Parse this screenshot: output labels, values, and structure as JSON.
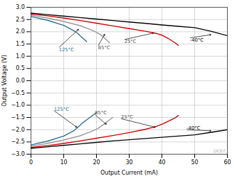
{
  "chart_data": {
    "type": "line",
    "xlabel": "Output Current (mA)",
    "ylabel": "Output Voltage (V)",
    "xlim": [
      0,
      60
    ],
    "ylim": [
      -3,
      3
    ],
    "xticks": [
      0,
      10,
      20,
      30,
      40,
      50,
      60
    ],
    "yticks": [
      {
        "value": -3,
        "label": "−3.0"
      },
      -2.5,
      {
        "value": -2,
        "label": "−2.0"
      },
      -1.5,
      {
        "value": -1,
        "label": "−1.0"
      },
      -0.5,
      {
        "value": 0,
        "label": "0.0"
      },
      0.5,
      {
        "value": 1,
        "label": "1.0"
      },
      1.5,
      {
        "value": 2,
        "label": "2.0"
      },
      2.5,
      {
        "value": 3,
        "label": "3.0"
      }
    ],
    "grid": true,
    "series": [
      {
        "color": "#000000",
        "x": [
          0,
          5,
          10,
          15,
          20,
          25,
          30,
          35,
          40,
          45,
          50,
          55,
          60
        ],
        "values": [
          2.76,
          2.7,
          2.64,
          2.58,
          2.52,
          2.46,
          2.4,
          2.34,
          2.28,
          2.22,
          2.17,
          2.02,
          1.84
        ]
      },
      {
        "color": "#cc0000",
        "x": [
          0,
          5,
          10,
          15,
          20,
          25,
          30,
          35,
          38,
          40,
          42,
          44,
          45
        ],
        "values": [
          2.72,
          2.65,
          2.56,
          2.46,
          2.35,
          2.24,
          2.13,
          2.02,
          1.94,
          1.86,
          1.72,
          1.55,
          1.45
        ]
      },
      {
        "color": "#999999",
        "x": [
          0,
          5,
          10,
          15,
          18,
          20,
          21,
          22,
          23,
          24
        ],
        "values": [
          2.67,
          2.56,
          2.42,
          2.25,
          2.1,
          1.98,
          1.9,
          1.8,
          1.68,
          1.55
        ]
      },
      {
        "color": "#2e7090",
        "x": [
          0,
          5,
          10,
          13,
          14,
          15,
          16,
          17
        ],
        "values": [
          2.62,
          2.47,
          2.26,
          2.05,
          1.96,
          1.84,
          1.72,
          1.6
        ]
      },
      {
        "color": "#000000",
        "x": [
          0,
          5,
          10,
          15,
          20,
          25,
          30,
          35,
          40,
          45,
          50,
          55,
          60
        ],
        "values": [
          -2.76,
          -2.7,
          -2.64,
          -2.58,
          -2.52,
          -2.46,
          -2.41,
          -2.36,
          -2.31,
          -2.26,
          -2.21,
          -2.11,
          -2.0
        ]
      },
      {
        "color": "#cc0000",
        "x": [
          0,
          5,
          10,
          15,
          20,
          25,
          30,
          35,
          38,
          40,
          42,
          44,
          45
        ],
        "values": [
          -2.72,
          -2.65,
          -2.56,
          -2.46,
          -2.35,
          -2.24,
          -2.12,
          -1.98,
          -1.88,
          -1.78,
          -1.65,
          -1.52,
          -1.42
        ]
      },
      {
        "color": "#999999",
        "x": [
          0,
          5,
          10,
          15,
          18,
          20,
          21,
          22,
          23,
          24,
          25
        ],
        "values": [
          -2.67,
          -2.56,
          -2.42,
          -2.25,
          -2.1,
          -1.98,
          -1.9,
          -1.8,
          -1.7,
          -1.6,
          -1.5
        ]
      },
      {
        "color": "#2e7090",
        "x": [
          0,
          5,
          10,
          13,
          14,
          15,
          16,
          17,
          18,
          19,
          20
        ],
        "values": [
          -2.62,
          -2.47,
          -2.26,
          -2.05,
          -1.94,
          -1.82,
          -1.7,
          -1.6,
          -1.5,
          -1.4,
          -1.3
        ]
      }
    ],
    "annotations": [
      {
        "text": "125°C",
        "x": 8.5,
        "y": 1.35,
        "arrow_x": 14.5,
        "arrow_y": 2.1,
        "color": "#2e7090"
      },
      {
        "text": "85°C",
        "x": 20.5,
        "y": 1.42,
        "arrow_x": 22.5,
        "arrow_y": 1.9,
        "color": "#555555"
      },
      {
        "text": "25°C",
        "x": 28.5,
        "y": 1.68,
        "arrow_x": 37.5,
        "arrow_y": 1.95,
        "color": "#555555"
      },
      {
        "text": "-40°C",
        "x": 48.5,
        "y": 1.75,
        "arrow_x": 55.0,
        "arrow_y": 1.88,
        "color": "#000000"
      },
      {
        "text": "125°C",
        "x": 7.0,
        "y": -1.22,
        "arrow_x": 14.0,
        "arrow_y": -1.9,
        "color": "#2e7090"
      },
      {
        "text": "85°C",
        "x": 19.5,
        "y": -1.38,
        "arrow_x": 23.0,
        "arrow_y": -1.78,
        "color": "#555555"
      },
      {
        "text": "25°C",
        "x": 27.5,
        "y": -1.55,
        "arrow_x": 38.0,
        "arrow_y": -1.9,
        "color": "#555555"
      },
      {
        "text": "-40°C",
        "x": 47.5,
        "y": -2.0,
        "arrow_x": 55.0,
        "arrow_y": -2.05,
        "color": "#000000"
      }
    ],
    "watermark": "DC07"
  }
}
